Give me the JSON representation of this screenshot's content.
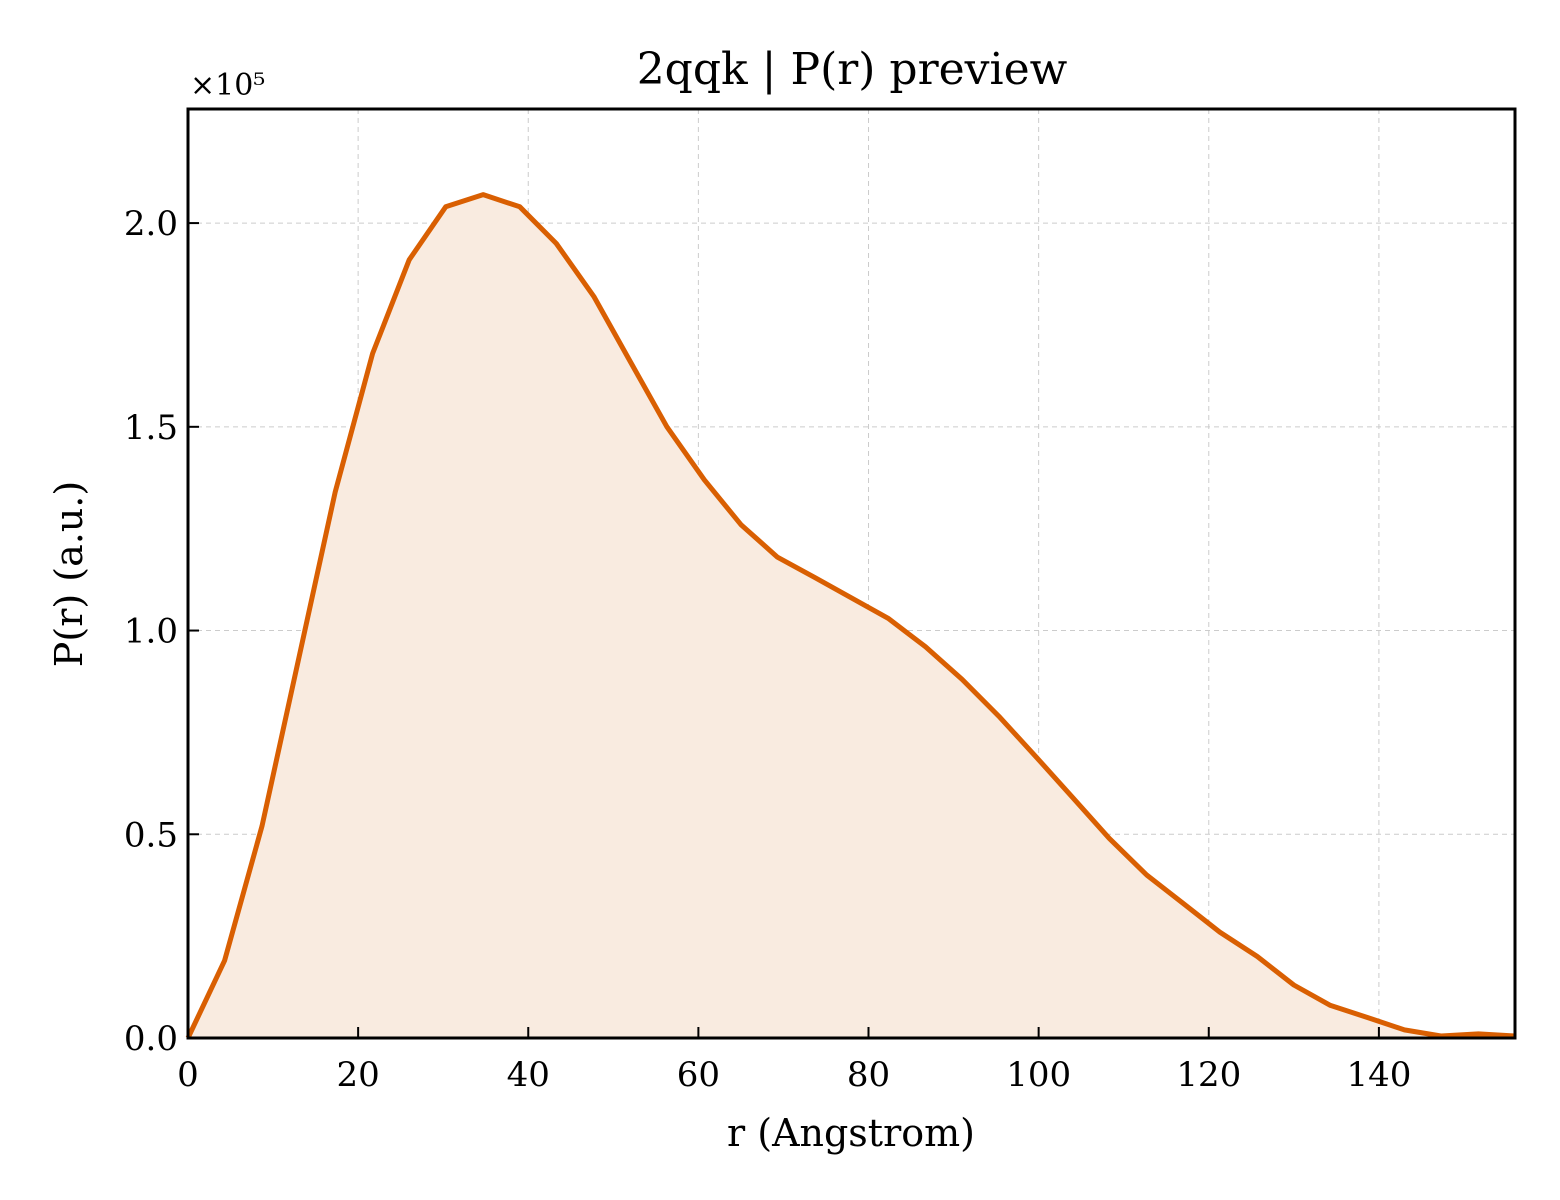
{
  "chart_data": {
    "type": "area",
    "title": "2qqk | P(r) preview",
    "xlabel": "r (Angstrom)",
    "ylabel": "P(r) (a.u.)",
    "y_multiplier_label": "×10⁵",
    "y_scale": 100000,
    "xlim": [
      0,
      156
    ],
    "ylim": [
      0,
      2.28
    ],
    "x_ticks": [
      0,
      20,
      40,
      60,
      80,
      100,
      120,
      140
    ],
    "x_tick_labels": [
      "0",
      "20",
      "40",
      "60",
      "80",
      "100",
      "120",
      "140"
    ],
    "y_ticks": [
      0.0,
      0.5,
      1.0,
      1.5,
      2.0
    ],
    "y_tick_labels": [
      "0.0",
      "0.5",
      "1.0",
      "1.5",
      "2.0"
    ],
    "grid": true,
    "line_color": "#d95f02",
    "fill_color": "#f9ebe0",
    "series": [
      {
        "x": [
          0,
          4.3,
          8.7,
          13.0,
          17.3,
          21.7,
          26.0,
          30.3,
          34.7,
          39.0,
          43.3,
          47.7,
          52.0,
          56.3,
          60.7,
          65.0,
          69.3,
          73.7,
          78.0,
          82.3,
          86.7,
          91.0,
          95.3,
          99.7,
          104.0,
          108.3,
          112.7,
          117.0,
          121.3,
          125.7,
          130.0,
          134.3,
          138.7,
          143.0,
          147.3,
          151.7,
          156.0
        ],
        "y": [
          0.0,
          0.19,
          0.52,
          0.93,
          1.34,
          1.68,
          1.91,
          2.04,
          2.07,
          2.04,
          1.95,
          1.82,
          1.66,
          1.5,
          1.37,
          1.26,
          1.18,
          1.13,
          1.08,
          1.03,
          0.96,
          0.88,
          0.79,
          0.69,
          0.59,
          0.49,
          0.4,
          0.33,
          0.26,
          0.2,
          0.13,
          0.08,
          0.05,
          0.02,
          0.005,
          0.01,
          0.005
        ]
      }
    ]
  }
}
